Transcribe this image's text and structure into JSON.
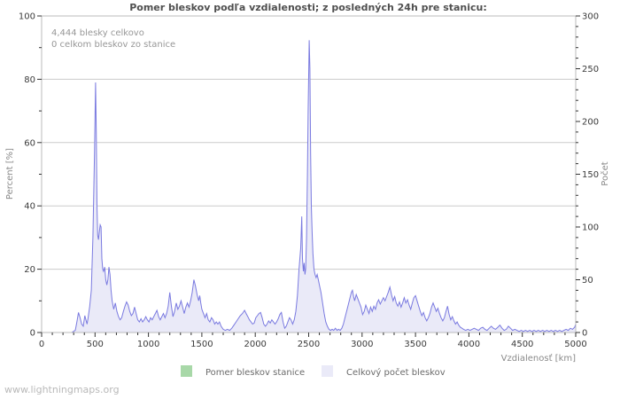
{
  "watermark": "www.lightningmaps.org",
  "chart_data": {
    "type": "area",
    "title": "Pomer bleskov podľa vzdialenosti; z posledných 24h pre stanicu:",
    "annotations": [
      "4,444 blesky celkovo",
      "0 celkom bleskov zo stanice"
    ],
    "grid": "horizontal-on",
    "legend_position": "bottom-center",
    "x_axis": {
      "label": "Vzdialenosť  [km]",
      "min": 0,
      "max": 5000,
      "major_tick_step": 500,
      "minor_tick_step": 100,
      "tick_labels": [
        "0",
        "500",
        "1000",
        "1500",
        "2000",
        "2500",
        "3000",
        "3500",
        "4000",
        "4500",
        "5000"
      ]
    },
    "y_left": {
      "label": "Percent  [%]",
      "min": 0,
      "max": 100,
      "major_tick_step": 20,
      "minor_tick_step": 10,
      "tick_labels": [
        "0",
        "20",
        "40",
        "60",
        "80",
        "100"
      ]
    },
    "y_right": {
      "label": "Počet",
      "min": 0,
      "max": 300,
      "major_tick_step": 50,
      "minor_tick_step": 10,
      "tick_labels": [
        "0",
        "50",
        "100",
        "150",
        "200",
        "250",
        "300"
      ]
    },
    "colors": {
      "grid": "#cccccc",
      "frame": "#bbbbbb",
      "tick": "#333333",
      "station_ratio_green": "#a8d8a8",
      "total_line": "#7a7ae0",
      "total_fill": "#eaeaf8"
    },
    "series": [
      {
        "name": "Pomer bleskov stanice",
        "axis": "left",
        "color": "#a8d8a8",
        "constant_value": 0
      },
      {
        "name": "Celkový počet bleskov",
        "axis": "right",
        "color_line": "#7a7ae0",
        "color_fill": "#eaeaf8",
        "points": [
          [
            0,
            0
          ],
          [
            100,
            0
          ],
          [
            200,
            0
          ],
          [
            280,
            0
          ],
          [
            315,
            2
          ],
          [
            330,
            10
          ],
          [
            345,
            19
          ],
          [
            360,
            14
          ],
          [
            375,
            8
          ],
          [
            390,
            6
          ],
          [
            405,
            16
          ],
          [
            415,
            12
          ],
          [
            425,
            8
          ],
          [
            435,
            14
          ],
          [
            450,
            25
          ],
          [
            465,
            40
          ],
          [
            480,
            90
          ],
          [
            495,
            170
          ],
          [
            505,
            237
          ],
          [
            512,
            190
          ],
          [
            518,
            120
          ],
          [
            525,
            92
          ],
          [
            532,
            88
          ],
          [
            540,
            95
          ],
          [
            548,
            102
          ],
          [
            556,
            100
          ],
          [
            564,
            70
          ],
          [
            572,
            60
          ],
          [
            580,
            58
          ],
          [
            590,
            62
          ],
          [
            600,
            50
          ],
          [
            610,
            45
          ],
          [
            620,
            50
          ],
          [
            630,
            62
          ],
          [
            640,
            55
          ],
          [
            650,
            40
          ],
          [
            660,
            30
          ],
          [
            675,
            22
          ],
          [
            690,
            28
          ],
          [
            705,
            20
          ],
          [
            720,
            15
          ],
          [
            735,
            12
          ],
          [
            750,
            14
          ],
          [
            765,
            20
          ],
          [
            780,
            25
          ],
          [
            795,
            29
          ],
          [
            810,
            26
          ],
          [
            825,
            20
          ],
          [
            840,
            16
          ],
          [
            855,
            18
          ],
          [
            870,
            24
          ],
          [
            885,
            18
          ],
          [
            900,
            12
          ],
          [
            915,
            10
          ],
          [
            930,
            13
          ],
          [
            945,
            10
          ],
          [
            960,
            12
          ],
          [
            975,
            15
          ],
          [
            990,
            12
          ],
          [
            1005,
            10
          ],
          [
            1020,
            14
          ],
          [
            1035,
            12
          ],
          [
            1050,
            15
          ],
          [
            1065,
            18
          ],
          [
            1080,
            21
          ],
          [
            1095,
            15
          ],
          [
            1110,
            12
          ],
          [
            1125,
            15
          ],
          [
            1140,
            18
          ],
          [
            1155,
            14
          ],
          [
            1170,
            18
          ],
          [
            1185,
            25
          ],
          [
            1200,
            38
          ],
          [
            1215,
            25
          ],
          [
            1230,
            15
          ],
          [
            1245,
            20
          ],
          [
            1260,
            28
          ],
          [
            1275,
            22
          ],
          [
            1290,
            25
          ],
          [
            1305,
            30
          ],
          [
            1320,
            24
          ],
          [
            1335,
            18
          ],
          [
            1350,
            24
          ],
          [
            1365,
            28
          ],
          [
            1380,
            24
          ],
          [
            1395,
            30
          ],
          [
            1410,
            38
          ],
          [
            1425,
            50
          ],
          [
            1440,
            44
          ],
          [
            1455,
            36
          ],
          [
            1470,
            30
          ],
          [
            1480,
            35
          ],
          [
            1490,
            28
          ],
          [
            1500,
            22
          ],
          [
            1515,
            18
          ],
          [
            1530,
            14
          ],
          [
            1545,
            18
          ],
          [
            1560,
            12
          ],
          [
            1575,
            10
          ],
          [
            1590,
            14
          ],
          [
            1605,
            12
          ],
          [
            1620,
            8
          ],
          [
            1635,
            10
          ],
          [
            1650,
            8
          ],
          [
            1665,
            10
          ],
          [
            1680,
            6
          ],
          [
            1700,
            3
          ],
          [
            1720,
            2
          ],
          [
            1740,
            3
          ],
          [
            1760,
            2
          ],
          [
            1780,
            4
          ],
          [
            1800,
            7
          ],
          [
            1820,
            10
          ],
          [
            1840,
            13
          ],
          [
            1860,
            16
          ],
          [
            1880,
            18
          ],
          [
            1900,
            21
          ],
          [
            1915,
            18
          ],
          [
            1930,
            15
          ],
          [
            1945,
            12
          ],
          [
            1960,
            10
          ],
          [
            1975,
            8
          ],
          [
            1990,
            9
          ],
          [
            2005,
            14
          ],
          [
            2020,
            16
          ],
          [
            2035,
            18
          ],
          [
            2050,
            19
          ],
          [
            2065,
            14
          ],
          [
            2080,
            8
          ],
          [
            2095,
            6
          ],
          [
            2110,
            8
          ],
          [
            2125,
            11
          ],
          [
            2140,
            9
          ],
          [
            2155,
            12
          ],
          [
            2170,
            10
          ],
          [
            2185,
            8
          ],
          [
            2200,
            10
          ],
          [
            2215,
            13
          ],
          [
            2230,
            17
          ],
          [
            2245,
            19
          ],
          [
            2260,
            10
          ],
          [
            2275,
            4
          ],
          [
            2290,
            6
          ],
          [
            2305,
            10
          ],
          [
            2320,
            14
          ],
          [
            2335,
            12
          ],
          [
            2350,
            8
          ],
          [
            2365,
            12
          ],
          [
            2380,
            20
          ],
          [
            2395,
            35
          ],
          [
            2410,
            60
          ],
          [
            2425,
            80
          ],
          [
            2435,
            110
          ],
          [
            2442,
            70
          ],
          [
            2450,
            58
          ],
          [
            2458,
            66
          ],
          [
            2465,
            55
          ],
          [
            2472,
            60
          ],
          [
            2480,
            90
          ],
          [
            2488,
            150
          ],
          [
            2495,
            210
          ],
          [
            2505,
            277
          ],
          [
            2512,
            250
          ],
          [
            2518,
            170
          ],
          [
            2525,
            120
          ],
          [
            2532,
            95
          ],
          [
            2540,
            75
          ],
          [
            2550,
            60
          ],
          [
            2560,
            55
          ],
          [
            2570,
            52
          ],
          [
            2580,
            55
          ],
          [
            2590,
            50
          ],
          [
            2600,
            45
          ],
          [
            2615,
            38
          ],
          [
            2630,
            28
          ],
          [
            2645,
            18
          ],
          [
            2660,
            10
          ],
          [
            2675,
            6
          ],
          [
            2690,
            3
          ],
          [
            2705,
            2
          ],
          [
            2720,
            3
          ],
          [
            2735,
            2
          ],
          [
            2750,
            4
          ],
          [
            2765,
            2
          ],
          [
            2780,
            3
          ],
          [
            2795,
            2
          ],
          [
            2810,
            4
          ],
          [
            2825,
            8
          ],
          [
            2840,
            14
          ],
          [
            2855,
            20
          ],
          [
            2870,
            26
          ],
          [
            2885,
            32
          ],
          [
            2900,
            38
          ],
          [
            2910,
            40
          ],
          [
            2920,
            34
          ],
          [
            2930,
            30
          ],
          [
            2945,
            36
          ],
          [
            2960,
            32
          ],
          [
            2975,
            28
          ],
          [
            2990,
            24
          ],
          [
            3005,
            17
          ],
          [
            3020,
            20
          ],
          [
            3035,
            26
          ],
          [
            3050,
            22
          ],
          [
            3065,
            18
          ],
          [
            3080,
            24
          ],
          [
            3095,
            20
          ],
          [
            3110,
            25
          ],
          [
            3125,
            22
          ],
          [
            3140,
            28
          ],
          [
            3155,
            31
          ],
          [
            3170,
            27
          ],
          [
            3185,
            30
          ],
          [
            3200,
            33
          ],
          [
            3215,
            30
          ],
          [
            3230,
            34
          ],
          [
            3245,
            38
          ],
          [
            3260,
            43
          ],
          [
            3275,
            36
          ],
          [
            3290,
            30
          ],
          [
            3305,
            34
          ],
          [
            3320,
            28
          ],
          [
            3335,
            25
          ],
          [
            3350,
            29
          ],
          [
            3365,
            24
          ],
          [
            3380,
            28
          ],
          [
            3395,
            33
          ],
          [
            3410,
            28
          ],
          [
            3425,
            31
          ],
          [
            3440,
            26
          ],
          [
            3455,
            22
          ],
          [
            3470,
            28
          ],
          [
            3485,
            33
          ],
          [
            3500,
            35
          ],
          [
            3515,
            30
          ],
          [
            3530,
            25
          ],
          [
            3545,
            20
          ],
          [
            3560,
            16
          ],
          [
            3575,
            19
          ],
          [
            3590,
            14
          ],
          [
            3605,
            11
          ],
          [
            3620,
            14
          ],
          [
            3635,
            18
          ],
          [
            3650,
            24
          ],
          [
            3665,
            28
          ],
          [
            3680,
            24
          ],
          [
            3695,
            20
          ],
          [
            3710,
            23
          ],
          [
            3725,
            18
          ],
          [
            3740,
            14
          ],
          [
            3755,
            11
          ],
          [
            3770,
            14
          ],
          [
            3785,
            20
          ],
          [
            3800,
            25
          ],
          [
            3815,
            17
          ],
          [
            3830,
            12
          ],
          [
            3845,
            15
          ],
          [
            3860,
            11
          ],
          [
            3875,
            8
          ],
          [
            3890,
            10
          ],
          [
            3905,
            7
          ],
          [
            3920,
            5
          ],
          [
            3935,
            4
          ],
          [
            3950,
            3
          ],
          [
            3970,
            2
          ],
          [
            3990,
            3
          ],
          [
            4010,
            2
          ],
          [
            4030,
            3
          ],
          [
            4050,
            4
          ],
          [
            4070,
            3
          ],
          [
            4090,
            2
          ],
          [
            4110,
            4
          ],
          [
            4130,
            5
          ],
          [
            4150,
            3
          ],
          [
            4170,
            2
          ],
          [
            4190,
            4
          ],
          [
            4210,
            6
          ],
          [
            4230,
            4
          ],
          [
            4250,
            3
          ],
          [
            4270,
            5
          ],
          [
            4290,
            7
          ],
          [
            4310,
            4
          ],
          [
            4330,
            2
          ],
          [
            4350,
            3
          ],
          [
            4370,
            6
          ],
          [
            4390,
            4
          ],
          [
            4410,
            2
          ],
          [
            4430,
            3
          ],
          [
            4450,
            2
          ],
          [
            4470,
            1
          ],
          [
            4490,
            2
          ],
          [
            4510,
            1
          ],
          [
            4530,
            2
          ],
          [
            4550,
            1
          ],
          [
            4570,
            2
          ],
          [
            4590,
            1
          ],
          [
            4610,
            2
          ],
          [
            4630,
            1
          ],
          [
            4650,
            2
          ],
          [
            4670,
            1
          ],
          [
            4690,
            2
          ],
          [
            4710,
            1
          ],
          [
            4730,
            2
          ],
          [
            4750,
            1
          ],
          [
            4770,
            2
          ],
          [
            4790,
            1
          ],
          [
            4810,
            2
          ],
          [
            4830,
            1
          ],
          [
            4850,
            2
          ],
          [
            4870,
            1
          ],
          [
            4890,
            2
          ],
          [
            4910,
            3
          ],
          [
            4930,
            2
          ],
          [
            4950,
            4
          ],
          [
            4970,
            3
          ],
          [
            4990,
            5
          ],
          [
            5000,
            8
          ]
        ]
      }
    ]
  }
}
